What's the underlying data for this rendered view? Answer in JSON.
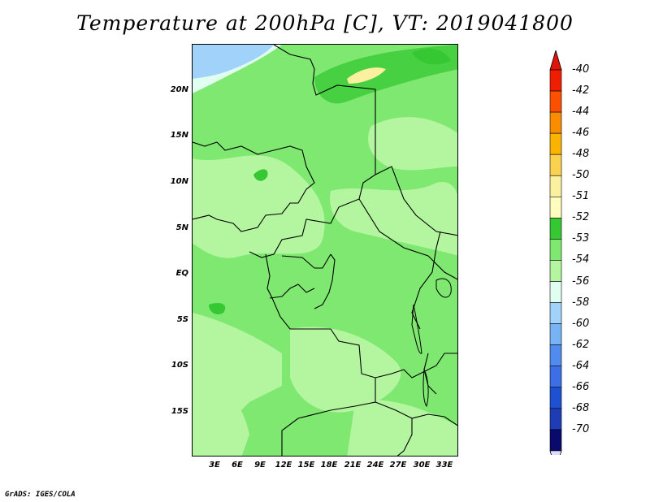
{
  "title": "Temperature at 200hPa [C], VT: 2019041800",
  "latitude_labels": [
    "20N",
    "15N",
    "10N",
    "5N",
    "EQ",
    "5S",
    "10S",
    "15S"
  ],
  "longitude_labels": [
    "3E",
    "6E",
    "9E",
    "12E",
    "15E",
    "18E",
    "21E",
    "24E",
    "27E",
    "30E",
    "33E"
  ],
  "colorbar": {
    "labels": [
      "-40",
      "-42",
      "-44",
      "-46",
      "-48",
      "-50",
      "-51",
      "-52",
      "-53",
      "-54",
      "-56",
      "-58",
      "-60",
      "-62",
      "-64",
      "-66",
      "-68",
      "-70"
    ],
    "colors": [
      "#f01e00",
      "#fa5000",
      "#fa8c00",
      "#fab400",
      "#fad250",
      "#faf0a0",
      "#fffcc0",
      "#36c832",
      "#7ee870",
      "#b4f5a0",
      "#e0fff0",
      "#a0d2fa",
      "#78b4f5",
      "#508cf0",
      "#3c6ee6",
      "#1e50d2",
      "#1e3cb4",
      "#0a0a6e"
    ],
    "top_arrow_color": "#e0140a",
    "bottom_arrow_color": "#dcdcff"
  },
  "footer": "GrADS: IGES/COLA"
}
